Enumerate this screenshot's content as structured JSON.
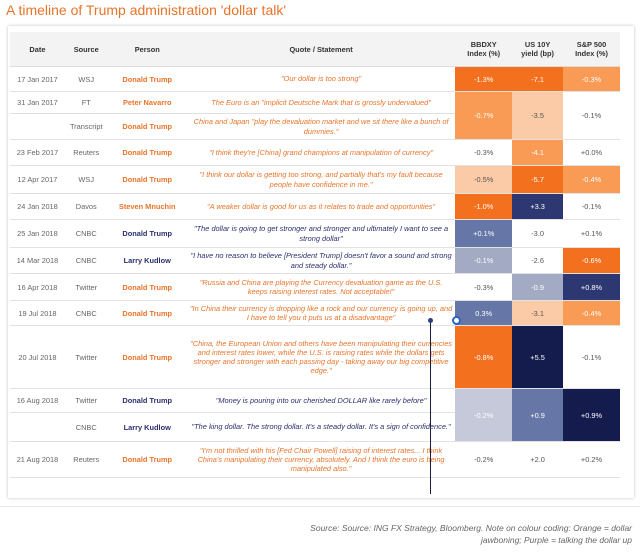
{
  "title": "A timeline of Trump administration 'dollar talk'",
  "headers": {
    "date": "Date",
    "source": "Source",
    "person": "Person",
    "quote": "Quote / Statement",
    "bbdxy": "BBDXY\nIndex (%)",
    "us10y": "US 10Y\nyield (bp)",
    "sp500": "S&P 500\nIndex (%)"
  },
  "rows": [
    {
      "date": "17 Jan 2017",
      "source": "WSJ",
      "person": "Donald Trump",
      "tone": "orange",
      "quote": "\"Our dollar is too strong\"",
      "bbdxy": "-1.3%",
      "us10y": "-7.1",
      "sp500": "-0.3%",
      "bbdxy_bg": "#f3711e",
      "bbdxy_fg": "#ffffff",
      "us10y_bg": "#f3711e",
      "us10y_fg": "#ffffff",
      "sp500_bg": "#f99a55",
      "sp500_fg": "#ffffff"
    },
    {
      "date": "31 Jan 2017",
      "source": "FT",
      "person": "Peter Navarro",
      "tone": "orange",
      "quote": "The Euro is an \"implicit Deutsche Mark that is grossly undervalued\"",
      "bbdxy": "-0.7%",
      "us10y": "-3.5",
      "sp500": "-0.1%",
      "bbdxy_bg": "#f99a55",
      "bbdxy_fg": "#ffffff",
      "us10y_bg": "#fbcaa6",
      "us10y_fg": "#555555",
      "sp500_bg": "#ffffff",
      "sp500_fg": "#555555",
      "merge_down": true
    },
    {
      "date": "",
      "source": "Transcript",
      "person": "Donald Trump",
      "tone": "orange",
      "quote": "China and Japan \"play the devaluation market and we sit there like a bunch of dummies.\"",
      "merged": true
    },
    {
      "date": "23 Feb 2017",
      "source": "Reuters",
      "person": "Donald Trump",
      "tone": "orange",
      "quote": "\"I think they're [China] grand champions at manipulation of currency\"",
      "bbdxy": "-0.3%",
      "us10y": "-4.1",
      "sp500": "+0.0%",
      "bbdxy_bg": "#ffffff",
      "bbdxy_fg": "#555555",
      "us10y_bg": "#f99a55",
      "us10y_fg": "#ffffff",
      "sp500_bg": "#ffffff",
      "sp500_fg": "#555555"
    },
    {
      "date": "12 Apr 2017",
      "source": "WSJ",
      "person": "Donald Trump",
      "tone": "orange",
      "quote": "\"I think our dollar is getting too strong, and partially that's my fault because people have confidence in me.\"",
      "bbdxy": "-0.5%",
      "us10y": "-5.7",
      "sp500": "-0.4%",
      "bbdxy_bg": "#fbcaa6",
      "bbdxy_fg": "#555555",
      "us10y_bg": "#f3711e",
      "us10y_fg": "#ffffff",
      "sp500_bg": "#f99a55",
      "sp500_fg": "#ffffff"
    },
    {
      "date": "24 Jan 2018",
      "source": "Davos",
      "person": "Steven Mnuchin",
      "tone": "orange",
      "quote": "\"A weaker dollar is good for us as it relates to trade and opportunities\"",
      "bbdxy": "-1.0%",
      "us10y": "+3.3",
      "sp500": "-0.1%",
      "bbdxy_bg": "#f3711e",
      "bbdxy_fg": "#ffffff",
      "us10y_bg": "#2d3872",
      "us10y_fg": "#ffffff",
      "sp500_bg": "#ffffff",
      "sp500_fg": "#555555"
    },
    {
      "date": "25 Jan 2018",
      "source": "CNBC",
      "person": "Donald Trump",
      "tone": "purple",
      "quote": "\"The dollar is going to get stronger and stronger and ultimately I want to see a strong dollar\"",
      "bbdxy": "+0.1%",
      "us10y": "-3.0",
      "sp500": "+0.1%",
      "bbdxy_bg": "#6676a6",
      "bbdxy_fg": "#ffffff",
      "us10y_bg": "#ffffff",
      "us10y_fg": "#555555",
      "sp500_bg": "#ffffff",
      "sp500_fg": "#555555"
    },
    {
      "date": "14 Mar 2018",
      "source": "CNBC",
      "person": "Larry Kudlow",
      "tone": "purple",
      "quote": "\"I have no reason to believe [President Trump] doesn't favor a sound and strong and steady dollar.\"",
      "bbdxy": "-0.1%",
      "us10y": "-2.6",
      "sp500": "-0.6%",
      "bbdxy_bg": "#a3aac4",
      "bbdxy_fg": "#ffffff",
      "us10y_bg": "#ffffff",
      "us10y_fg": "#555555",
      "sp500_bg": "#f3711e",
      "sp500_fg": "#ffffff"
    },
    {
      "date": "16 Apr 2018",
      "source": "Twitter",
      "person": "Donald Trump",
      "tone": "orange",
      "quote": "\"Russia and China are playing the Currency devaluation game as the U.S. keeps raising interest rates. Not acceptable!\"",
      "bbdxy": "-0.3%",
      "us10y": "-0.9",
      "sp500": "+0.8%",
      "bbdxy_bg": "#ffffff",
      "bbdxy_fg": "#555555",
      "us10y_bg": "#a3aac4",
      "us10y_fg": "#ffffff",
      "sp500_bg": "#2d3872",
      "sp500_fg": "#ffffff"
    },
    {
      "date": "19 Jul 2018",
      "source": "CNBC",
      "person": "Donald Trump",
      "tone": "orange",
      "quote": "\"In China their currency is dropping like a rock and our currency is going up, and I have to tell you it puts us at a disadvantage\"",
      "bbdxy": "0.3%",
      "us10y": "-3.1",
      "sp500": "-0.4%",
      "bbdxy_bg": "#6676a6",
      "bbdxy_fg": "#ffffff",
      "us10y_bg": "#fbcaa6",
      "us10y_fg": "#555555",
      "sp500_bg": "#f99a55",
      "sp500_fg": "#ffffff"
    },
    {
      "date": "20 Jul 2018",
      "source": "Twitter",
      "person": "Donald Trump",
      "tone": "orange",
      "quote": "\"China, the European Union and others have been manipulating their currencies and interest rates lower, while the U.S. is raising rates while the dollars gets stronger and stronger with each passing day - taking away our big competitive edge.\"",
      "bbdxy": "-0.8%",
      "us10y": "+5.5",
      "sp500": "-0.1%",
      "bbdxy_bg": "#f3711e",
      "bbdxy_fg": "#ffffff",
      "us10y_bg": "#141b4d",
      "us10y_fg": "#ffffff",
      "sp500_bg": "#ffffff",
      "sp500_fg": "#555555"
    },
    {
      "date": "16 Aug 2018",
      "source": "Twitter",
      "person": "Donald Trump",
      "tone": "purple",
      "quote": "\"Money is pouring into our cherished DOLLAR like rarely before\"",
      "bbdxy": "-0.2%",
      "us10y": "+0.9",
      "sp500": "+0.9%",
      "bbdxy_bg": "#c5c9da",
      "bbdxy_fg": "#ffffff",
      "us10y_bg": "#6676a6",
      "us10y_fg": "#ffffff",
      "sp500_bg": "#141b4d",
      "sp500_fg": "#ffffff",
      "merge_down": true
    },
    {
      "date": "",
      "source": "CNBC",
      "person": "Larry Kudlow",
      "tone": "purple",
      "quote": "\"The king dollar. The strong dollar. It's a steady dollar. It's a sign of confidence.\"",
      "merged": true
    },
    {
      "date": "21 Aug 2018",
      "source": "Reuters",
      "person": "Donald Trump",
      "tone": "orange",
      "quote": "\"I'm not thrilled with his [Fed Chair Powell] raising of interest rates... I think China's manipulating their currency, absolutely. And I think the euro is being manipulated also.\"",
      "bbdxy": "-0.2%",
      "us10y": "+2.0",
      "sp500": "+0.2%",
      "bbdxy_bg": "#ffffff",
      "bbdxy_fg": "#555555",
      "us10y_bg": "#ffffff",
      "us10y_fg": "#555555",
      "sp500_bg": "#ffffff",
      "sp500_fg": "#555555"
    }
  ],
  "source_note": "Source: Source: ING FX Strategy, Bloomberg. Note on colour coding: Orange = dollar jawboning; Purple = talking the dollar up"
}
